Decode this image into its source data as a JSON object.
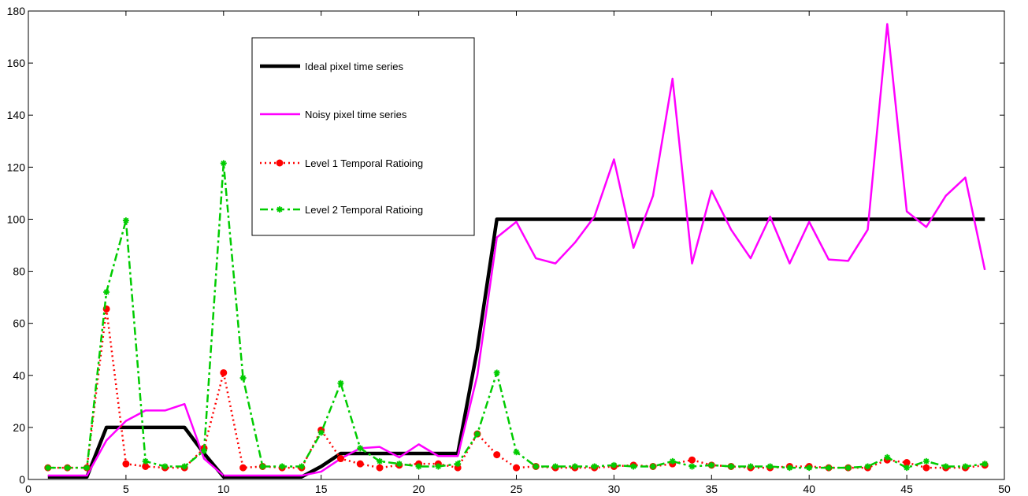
{
  "chart_data": {
    "type": "line",
    "title": "",
    "xlabel": "",
    "ylabel": "",
    "xlim": [
      0,
      50
    ],
    "ylim": [
      0,
      180
    ],
    "xticks": [
      0,
      5,
      10,
      15,
      20,
      25,
      30,
      35,
      40,
      45,
      50
    ],
    "yticks": [
      0,
      20,
      40,
      60,
      80,
      100,
      120,
      140,
      160,
      180
    ],
    "grid": false,
    "legend_position": "top-center",
    "x": [
      1,
      2,
      3,
      4,
      5,
      6,
      7,
      8,
      9,
      10,
      11,
      12,
      13,
      14,
      15,
      16,
      17,
      18,
      19,
      20,
      21,
      22,
      23,
      24,
      25,
      26,
      27,
      28,
      29,
      30,
      31,
      32,
      33,
      34,
      35,
      36,
      37,
      38,
      39,
      40,
      41,
      42,
      43,
      44,
      45,
      46,
      47,
      48,
      49
    ],
    "series": [
      {
        "name": "Ideal pixel time series",
        "color": "#000000",
        "style": "solid",
        "marker": "none",
        "values": [
          1,
          1,
          1,
          20,
          20,
          20,
          20,
          20,
          10,
          1,
          1,
          1,
          1,
          1,
          5,
          10,
          10,
          10,
          10,
          10,
          10,
          10,
          50,
          100,
          100,
          100,
          100,
          100,
          100,
          100,
          100,
          100,
          100,
          100,
          100,
          100,
          100,
          100,
          100,
          100,
          100,
          100,
          100,
          100,
          100,
          100,
          100,
          100,
          100
        ]
      },
      {
        "name": "Noisy pixel time series",
        "color": "#ff00ff",
        "style": "solid",
        "marker": "none",
        "values": [
          1.5,
          1.5,
          1.5,
          15,
          22.5,
          26.5,
          26.5,
          29,
          8,
          1.5,
          1.5,
          1.5,
          1.5,
          1.5,
          3,
          8,
          12,
          12.5,
          8.5,
          13.5,
          9,
          9,
          40,
          93,
          99,
          85,
          83,
          91,
          101,
          123,
          89,
          109,
          154,
          83,
          111,
          96,
          85,
          101,
          83,
          99,
          84.5,
          84,
          96,
          175,
          103,
          97,
          109,
          116,
          80.5
        ]
      },
      {
        "name": "Level 1 Temporal Ratioing",
        "color": "#ff0000",
        "style": "dotted",
        "marker": "circle",
        "values": [
          4.5,
          4.5,
          4.5,
          65.5,
          6,
          5,
          4.5,
          4.5,
          12,
          41,
          4.5,
          5,
          4.5,
          4.5,
          19,
          8,
          6,
          4.5,
          5.5,
          6,
          6,
          4.5,
          17.5,
          9.5,
          4.5,
          5,
          4.5,
          4.5,
          4.5,
          5,
          5.5,
          5,
          6,
          7.5,
          5.5,
          5,
          4.5,
          4.5,
          5,
          5,
          4.5,
          4.5,
          4.5,
          7.5,
          6.5,
          4.5,
          4.5,
          4.5,
          5.5
        ]
      },
      {
        "name": "Level 2 Temporal Ratioing",
        "color": "#00cc00",
        "style": "dashdot",
        "marker": "star",
        "values": [
          4.5,
          4.5,
          4.5,
          72,
          99.5,
          7,
          5,
          5,
          11,
          121.5,
          39,
          5,
          5,
          5,
          18,
          37,
          12,
          7,
          6,
          5,
          5,
          6,
          17.5,
          41,
          10.5,
          5,
          5,
          5,
          5,
          5.5,
          5,
          5,
          7,
          5,
          5.5,
          5,
          5,
          5,
          4.5,
          4.5,
          4.5,
          4.5,
          5,
          8.5,
          4.5,
          7,
          5,
          5,
          6
        ]
      }
    ]
  }
}
